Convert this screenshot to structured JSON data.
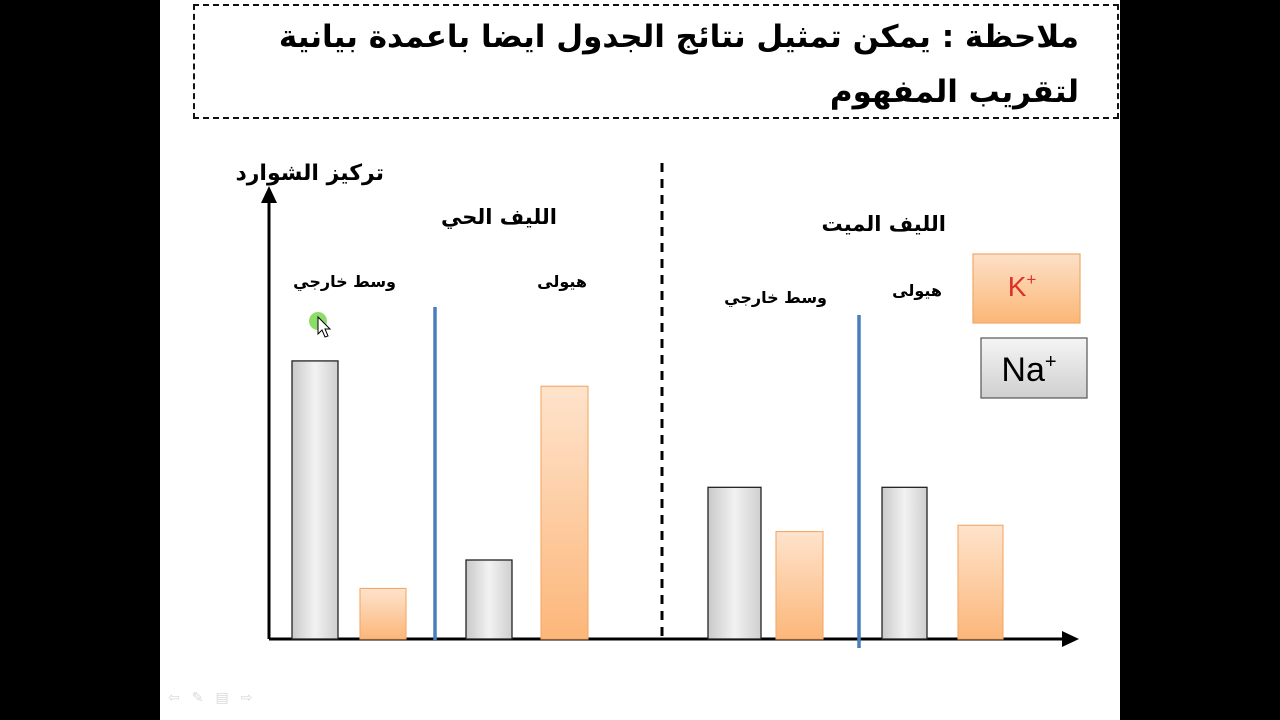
{
  "note": {
    "text": "ملاحظة : يمكن تمثيل نتائج الجدول ايضا باعمدة بيانية لتقريب المفهوم"
  },
  "colors": {
    "na_fill": "#e3e3e3",
    "k_fill": "#fdc08a",
    "divider_blue": "#4a7ebb",
    "axis": "#000000"
  },
  "chart_data": {
    "type": "bar",
    "ylabel": "تركيز الشوارد",
    "ylim": [
      0,
      100
    ],
    "legend": {
      "position": "right",
      "items": [
        {
          "ion": "K",
          "charge": "+",
          "fill": "#fdc08a",
          "text_color": "#e0302a"
        },
        {
          "ion": "Na",
          "charge": "+",
          "fill": "#e3e3e3",
          "text_color": "#000000"
        }
      ]
    },
    "groups": [
      {
        "title": "الليف الحي",
        "compartments": [
          {
            "label": "وسط خارجي",
            "values": {
              "Na": 88,
              "K": 16
            }
          },
          {
            "label": "هيولى",
            "values": {
              "Na": 25,
              "K": 80
            }
          }
        ]
      },
      {
        "title": "الليف الميت",
        "compartments": [
          {
            "label": "وسط خارجي",
            "values": {
              "Na": 48,
              "K": 34
            }
          },
          {
            "label": "هيولى",
            "values": {
              "Na": 48,
              "K": 36
            }
          }
        ]
      }
    ]
  },
  "nav_icons": [
    "back-arrow-icon",
    "pen-icon",
    "menu-icon",
    "forward-arrow-icon"
  ]
}
